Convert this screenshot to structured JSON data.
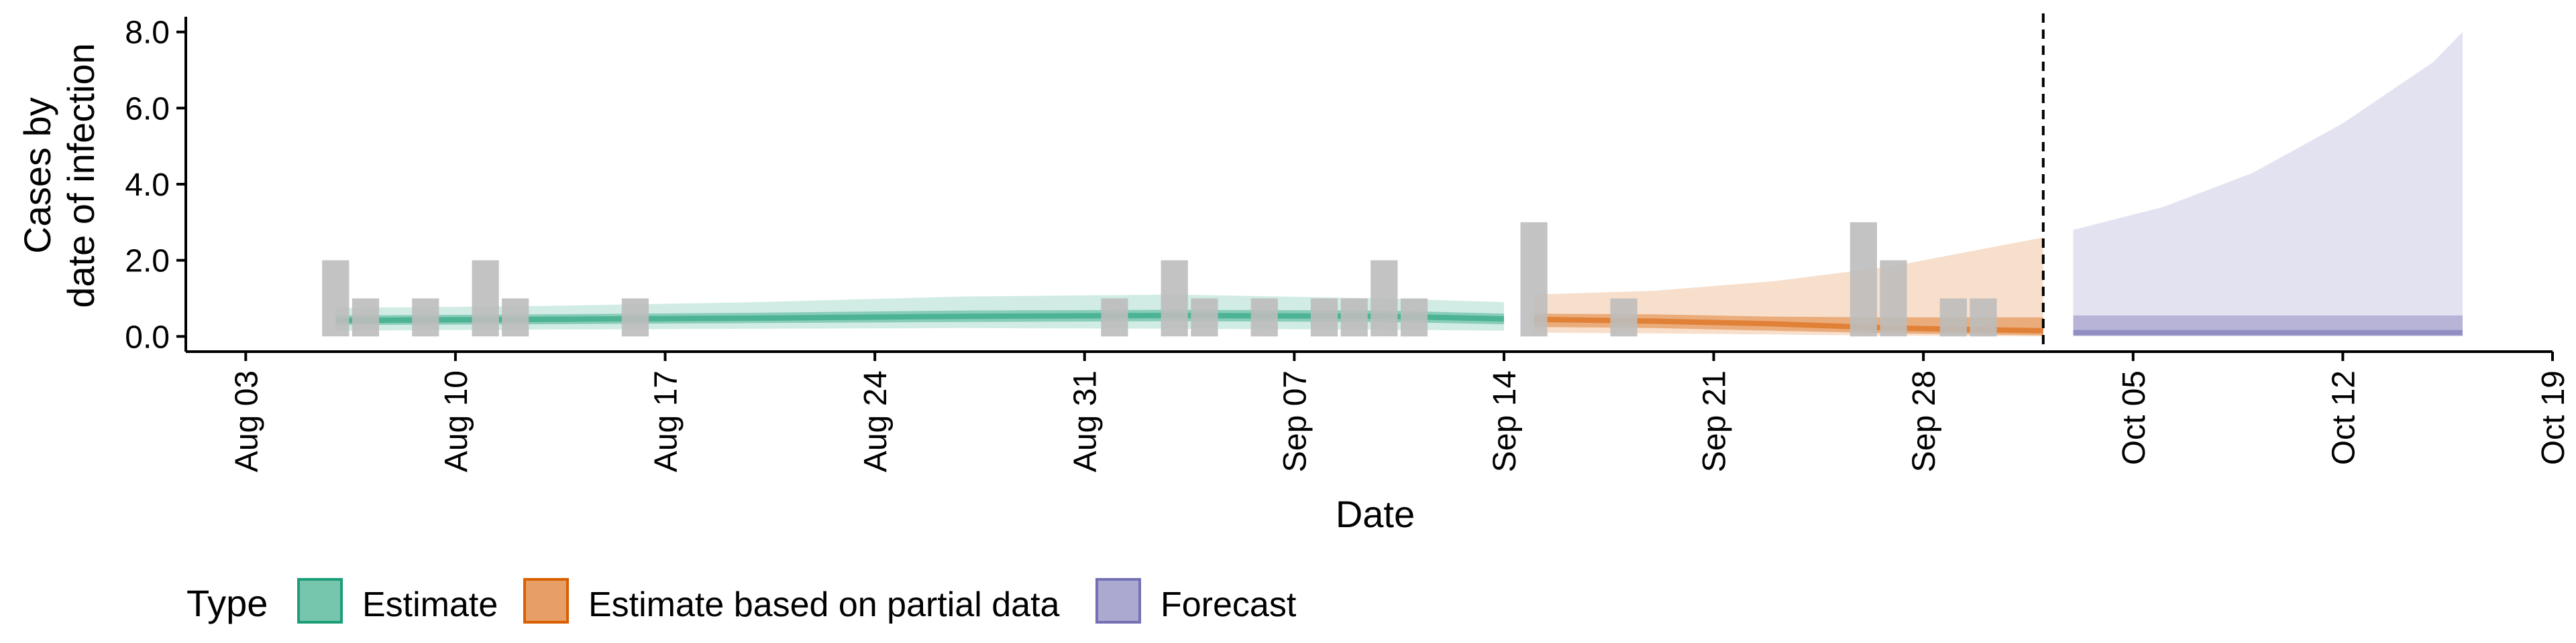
{
  "chart_data": {
    "type": "bar",
    "ylabel_lines": [
      "Cases by",
      "date of infection"
    ],
    "xlabel": "Date",
    "ylim": [
      -0.4,
      8.4
    ],
    "xlim": [
      "2020-08-01",
      "2020-10-19"
    ],
    "y_ticks": [
      {
        "value": 0,
        "label": "0.0"
      },
      {
        "value": 2,
        "label": "2.0"
      },
      {
        "value": 4,
        "label": "4.0"
      },
      {
        "value": 6,
        "label": "6.0"
      },
      {
        "value": 8,
        "label": "8.0"
      }
    ],
    "x_ticks": [
      {
        "date": "2020-08-03",
        "label": "Aug 03"
      },
      {
        "date": "2020-08-10",
        "label": "Aug 10"
      },
      {
        "date": "2020-08-17",
        "label": "Aug 17"
      },
      {
        "date": "2020-08-24",
        "label": "Aug 24"
      },
      {
        "date": "2020-08-31",
        "label": "Aug 31"
      },
      {
        "date": "2020-09-07",
        "label": "Sep 07"
      },
      {
        "date": "2020-09-14",
        "label": "Sep 14"
      },
      {
        "date": "2020-09-21",
        "label": "Sep 21"
      },
      {
        "date": "2020-09-28",
        "label": "Sep 28"
      },
      {
        "date": "2020-10-05",
        "label": "Oct 05"
      },
      {
        "date": "2020-10-12",
        "label": "Oct 12"
      },
      {
        "date": "2020-10-19",
        "label": "Oct 19"
      }
    ],
    "observed_cases": [
      {
        "date": "2020-08-06",
        "value": 2
      },
      {
        "date": "2020-08-07",
        "value": 1
      },
      {
        "date": "2020-08-09",
        "value": 1
      },
      {
        "date": "2020-08-11",
        "value": 2
      },
      {
        "date": "2020-08-12",
        "value": 1
      },
      {
        "date": "2020-08-16",
        "value": 1
      },
      {
        "date": "2020-09-01",
        "value": 1
      },
      {
        "date": "2020-09-03",
        "value": 2
      },
      {
        "date": "2020-09-04",
        "value": 1
      },
      {
        "date": "2020-09-06",
        "value": 1
      },
      {
        "date": "2020-09-08",
        "value": 1
      },
      {
        "date": "2020-09-09",
        "value": 1
      },
      {
        "date": "2020-09-10",
        "value": 2
      },
      {
        "date": "2020-09-11",
        "value": 1
      },
      {
        "date": "2020-09-15",
        "value": 3
      },
      {
        "date": "2020-09-18",
        "value": 1
      },
      {
        "date": "2020-09-26",
        "value": 3
      },
      {
        "date": "2020-09-27",
        "value": 2
      },
      {
        "date": "2020-09-29",
        "value": 1
      },
      {
        "date": "2020-09-30",
        "value": 1
      }
    ],
    "forecast_start": "2020-10-02",
    "bands": [
      {
        "type": "Estimate",
        "color": "#1b9e77",
        "points": [
          {
            "date": "2020-08-06",
            "lo90": 0.15,
            "hi90": 0.75,
            "lo50": 0.3,
            "hi50": 0.55
          },
          {
            "date": "2020-08-13",
            "lo90": 0.18,
            "hi90": 0.8,
            "lo50": 0.32,
            "hi50": 0.58
          },
          {
            "date": "2020-08-20",
            "lo90": 0.2,
            "hi90": 0.9,
            "lo50": 0.35,
            "hi50": 0.62
          },
          {
            "date": "2020-08-27",
            "lo90": 0.22,
            "hi90": 1.05,
            "lo50": 0.38,
            "hi50": 0.68
          },
          {
            "date": "2020-09-03",
            "lo90": 0.2,
            "hi90": 1.1,
            "lo50": 0.4,
            "hi50": 0.7
          },
          {
            "date": "2020-09-10",
            "lo90": 0.18,
            "hi90": 1.0,
            "lo50": 0.38,
            "hi50": 0.68
          },
          {
            "date": "2020-09-14",
            "lo90": 0.15,
            "hi90": 0.9,
            "lo50": 0.32,
            "hi50": 0.6
          }
        ],
        "median": [
          {
            "date": "2020-08-06",
            "value": 0.42
          },
          {
            "date": "2020-08-13",
            "value": 0.45
          },
          {
            "date": "2020-08-20",
            "value": 0.48
          },
          {
            "date": "2020-08-27",
            "value": 0.53
          },
          {
            "date": "2020-09-03",
            "value": 0.55
          },
          {
            "date": "2020-09-10",
            "value": 0.53
          },
          {
            "date": "2020-09-14",
            "value": 0.46
          }
        ]
      },
      {
        "type": "Estimate based on partial data",
        "color": "#d95f02",
        "points": [
          {
            "date": "2020-09-15",
            "lo90": 0.1,
            "hi90": 1.1,
            "lo50": 0.25,
            "hi50": 0.6
          },
          {
            "date": "2020-09-19",
            "lo90": 0.08,
            "hi90": 1.2,
            "lo50": 0.22,
            "hi50": 0.58
          },
          {
            "date": "2020-09-23",
            "lo90": 0.05,
            "hi90": 1.45,
            "lo50": 0.15,
            "hi50": 0.52
          },
          {
            "date": "2020-09-27",
            "lo90": 0.02,
            "hi90": 1.85,
            "lo50": 0.08,
            "hi50": 0.5
          },
          {
            "date": "2020-10-02",
            "lo90": 0.0,
            "hi90": 2.6,
            "lo50": 0.03,
            "hi50": 0.5
          }
        ],
        "median": [
          {
            "date": "2020-09-15",
            "value": 0.45
          },
          {
            "date": "2020-09-19",
            "value": 0.4
          },
          {
            "date": "2020-09-23",
            "value": 0.33
          },
          {
            "date": "2020-09-27",
            "value": 0.22
          },
          {
            "date": "2020-10-02",
            "value": 0.15
          }
        ]
      },
      {
        "type": "Forecast",
        "color": "#7570b3",
        "points": [
          {
            "date": "2020-10-03",
            "lo90": 0.0,
            "hi90": 2.8,
            "lo50": 0.02,
            "hi50": 0.55
          },
          {
            "date": "2020-10-06",
            "lo90": 0.0,
            "hi90": 3.4,
            "lo50": 0.02,
            "hi50": 0.55
          },
          {
            "date": "2020-10-09",
            "lo90": 0.0,
            "hi90": 4.3,
            "lo50": 0.02,
            "hi50": 0.55
          },
          {
            "date": "2020-10-12",
            "lo90": 0.0,
            "hi90": 5.6,
            "lo50": 0.02,
            "hi50": 0.55
          },
          {
            "date": "2020-10-15",
            "lo90": 0.0,
            "hi90": 7.2,
            "lo50": 0.02,
            "hi50": 0.55
          },
          {
            "date": "2020-10-16",
            "lo90": 0.0,
            "hi90": 8.0,
            "lo50": 0.02,
            "hi50": 0.55
          }
        ],
        "median": [
          {
            "date": "2020-10-03",
            "value": 0.1
          },
          {
            "date": "2020-10-16",
            "value": 0.1
          }
        ]
      }
    ],
    "legend": {
      "title": "Type",
      "position": "bottom-left",
      "items": [
        {
          "label": "Estimate",
          "color": "#1b9e77"
        },
        {
          "label": "Estimate based on partial data",
          "color": "#d95f02"
        },
        {
          "label": "Forecast",
          "color": "#7570b3"
        }
      ]
    },
    "colors": {
      "observed": "#bdbdbd",
      "axis": "#000000"
    }
  }
}
